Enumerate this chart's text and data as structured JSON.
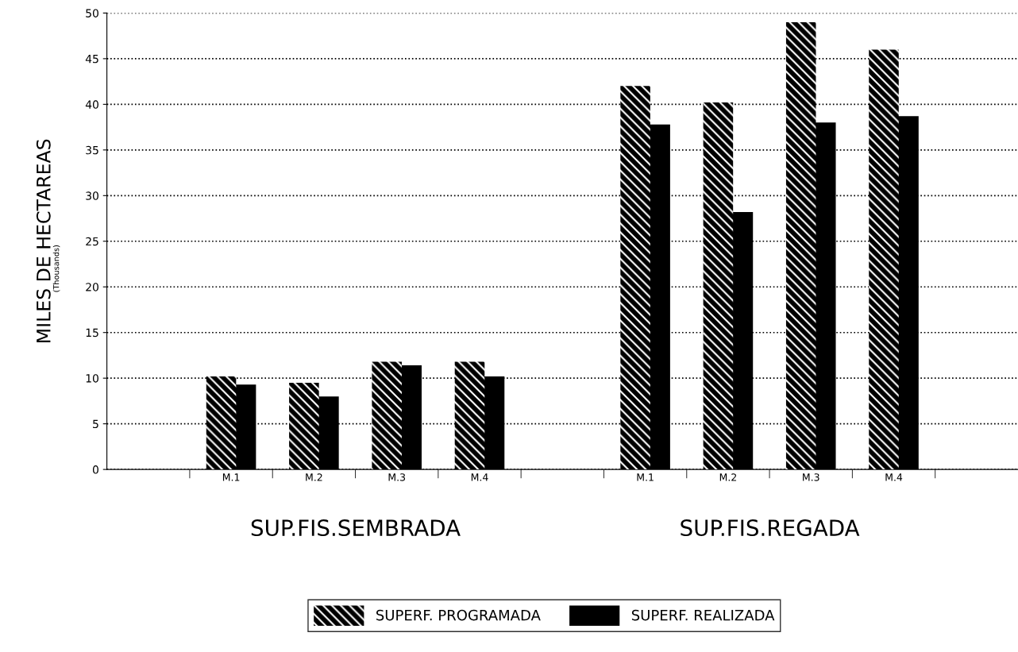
{
  "chart_data": {
    "type": "bar",
    "ylabel": "MILES DE HECTAREAS",
    "categories": [
      null,
      "M.1",
      "M.2",
      "M.3",
      "M.4",
      null,
      "M.1",
      "M.2",
      "M.3",
      "M.4",
      null
    ],
    "series": [
      {
        "name": "SUPERF. PROGRAMADA",
        "color": "#000000",
        "values": [
          null,
          10.2,
          9.5,
          11.8,
          11.8,
          null,
          42,
          40.2,
          49,
          46,
          null
        ]
      },
      {
        "name": "SUPERF. REALIZADA",
        "color": "#000000",
        "values": [
          null,
          9.3,
          8,
          11.4,
          10.2,
          null,
          37.8,
          28.2,
          38,
          38.7,
          null
        ]
      }
    ],
    "ylim": [
      0,
      50
    ],
    "yticks": [
      0,
      5,
      10,
      15,
      20,
      25,
      30,
      35,
      40,
      45,
      50
    ],
    "annotations": [
      "(Thousands)",
      "SUP.FIS.SEMBRADA",
      "SUP.FIS.REGADA"
    ],
    "grid": "y",
    "legend": "bottom"
  }
}
